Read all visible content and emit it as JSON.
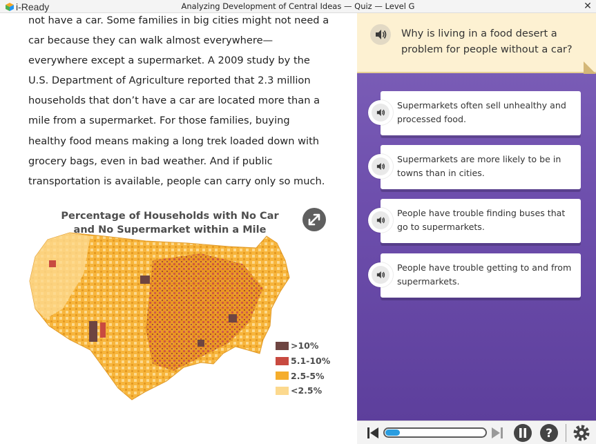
{
  "app": {
    "logo_text": "i-Ready",
    "window_title": "Analyzing Development of Central Ideas — Quiz — Level G",
    "close_symbol": "✕"
  },
  "passage": {
    "lines": [
      "not have a car. Some families in big cities might not need a",
      "car because they can walk almost everywhere—",
      "everywhere except a supermarket. A 2009 study by the",
      "U.S. Department of Agriculture reported that 2.3 million",
      "households that don’t have a car are located more than a",
      "mile from a supermarket. For those families, buying",
      "healthy food means making a long trek loaded down with",
      "grocery bags, even in bad weather. And if public",
      "transportation is available, people can carry only so much."
    ]
  },
  "map": {
    "title_line1": "Percentage of Households with No Car",
    "title_line2": "and No Supermarket within a Mile",
    "expand_icon": "expand-icon",
    "legend": [
      {
        "label": ">10%",
        "color": "#6e4541"
      },
      {
        "label": "5.1-10%",
        "color": "#c84a40"
      },
      {
        "label": "2.5-5%",
        "color": "#f5ad2c"
      },
      {
        "label": "<2.5%",
        "color": "#fcd98e"
      }
    ]
  },
  "question": {
    "text": "Why is living in a food desert a problem for people without a car?",
    "audio_icon": "speaker-icon"
  },
  "answers": [
    {
      "text": "Supermarkets often sell unhealthy and processed food."
    },
    {
      "text": "Supermarkets are more likely to be in towns than in cities."
    },
    {
      "text": "People have trouble finding buses that go to supermarkets."
    },
    {
      "text": "People have trouble getting to and from supermarkets."
    }
  ],
  "bottom_bar": {
    "progress_fraction": 0.15,
    "icons": [
      "skip-back-icon",
      "skip-forward-icon",
      "pause-icon",
      "help-icon",
      "settings-icon"
    ]
  },
  "colors": {
    "panel_purple": "#6e4fad",
    "question_bg": "#fdf1d2",
    "progress_blue": "#2a9de0"
  }
}
